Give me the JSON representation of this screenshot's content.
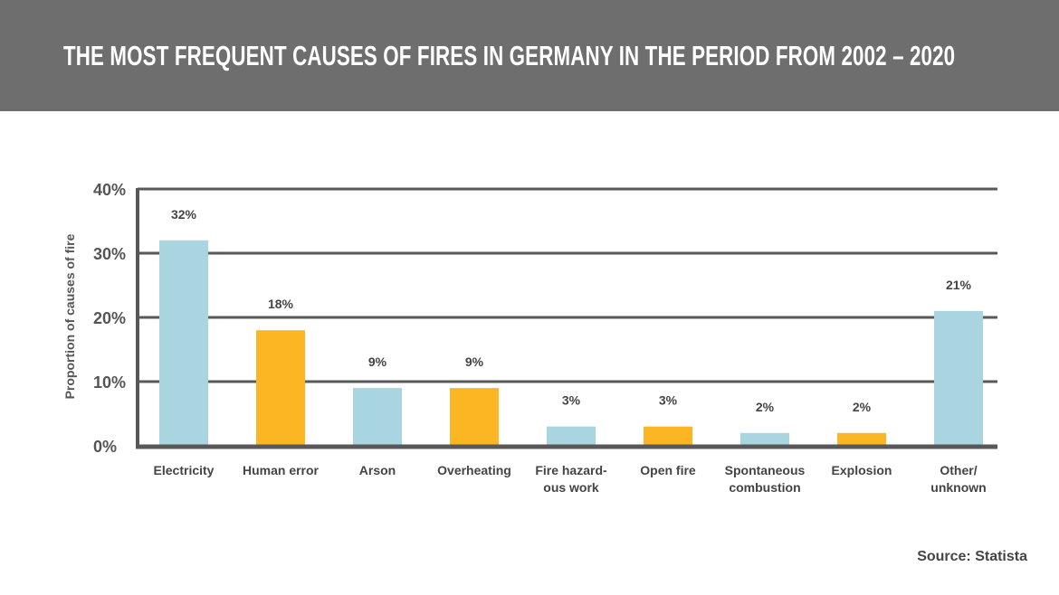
{
  "header": {
    "title": "THE MOST FREQUENT CAUSES OF FIRES IN GERMANY IN THE PERIOD FROM 2002 – 2020"
  },
  "chart_data": {
    "type": "bar",
    "title": "THE MOST FREQUENT CAUSES OF FIRES IN GERMANY IN THE PERIOD FROM 2002 – 2020",
    "xlabel": "",
    "ylabel": "Proportion of causes of fire",
    "ylim": [
      0,
      40
    ],
    "yticks": [
      "0%",
      "10%",
      "20%",
      "30%",
      "40%"
    ],
    "ytick_values": [
      0,
      10,
      20,
      30,
      40
    ],
    "grid": true,
    "categories": [
      [
        "Electricity"
      ],
      [
        "Human error"
      ],
      [
        "Arson"
      ],
      [
        "Overheating"
      ],
      [
        "Fire hazard-",
        "ous work"
      ],
      [
        "Open fire"
      ],
      [
        "Spontaneous",
        "combustion"
      ],
      [
        "Explosion"
      ],
      [
        "Other/",
        "unknown"
      ]
    ],
    "values": [
      32,
      18,
      9,
      9,
      3,
      3,
      2,
      2,
      21
    ],
    "data_labels": [
      "32%",
      "18%",
      "9%",
      "9%",
      "3%",
      "3%",
      "2%",
      "2%",
      "21%"
    ],
    "bar_colors": [
      "#a8d5e0",
      "#fdb623",
      "#a8d5e0",
      "#fdb623",
      "#a8d5e0",
      "#fdb623",
      "#a8d5e0",
      "#fdb623",
      "#a8d5e0"
    ],
    "axis_color": "#58585a"
  },
  "source": "Source: Statista"
}
